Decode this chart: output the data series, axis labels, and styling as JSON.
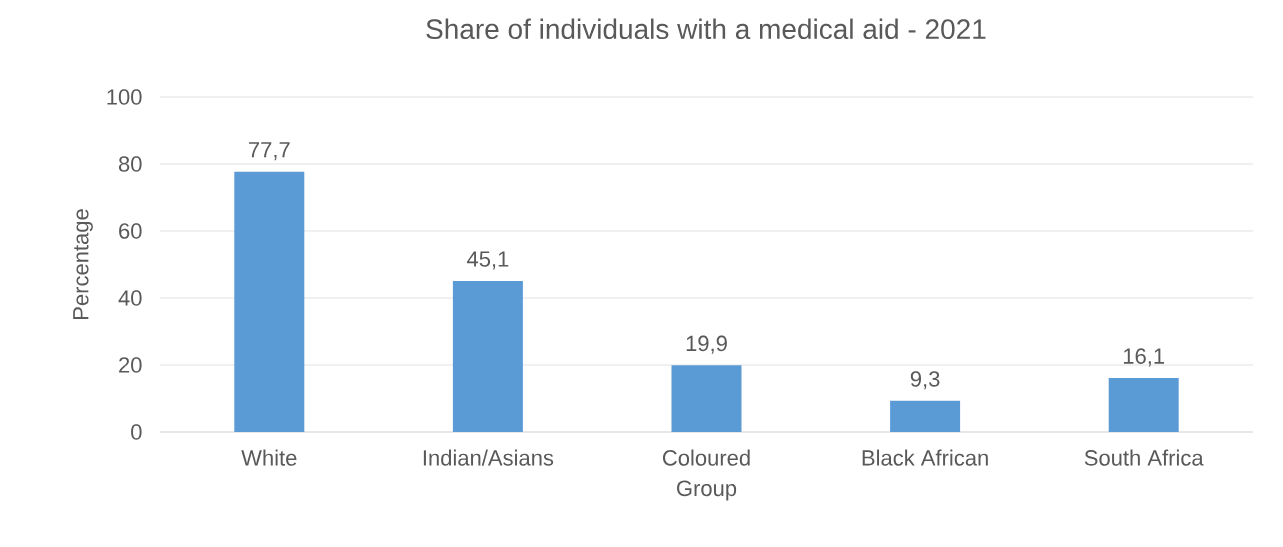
{
  "chart_data": {
    "type": "bar",
    "title": "Share of individuals with a medical aid - 2021",
    "xlabel": "Group",
    "ylabel": "Percentage",
    "categories": [
      "White",
      "Indian/Asians",
      "Coloured",
      "Black African",
      "South Africa"
    ],
    "values": [
      77.7,
      45.1,
      19.9,
      9.3,
      16.1
    ],
    "value_labels": [
      "77,7",
      "45,1",
      "19,9",
      "9,3",
      "16,1"
    ],
    "color": "#5b9bd5",
    "ylim": [
      0,
      100
    ],
    "yticks": [
      0,
      20,
      40,
      60,
      80,
      100
    ],
    "grid": "y"
  }
}
